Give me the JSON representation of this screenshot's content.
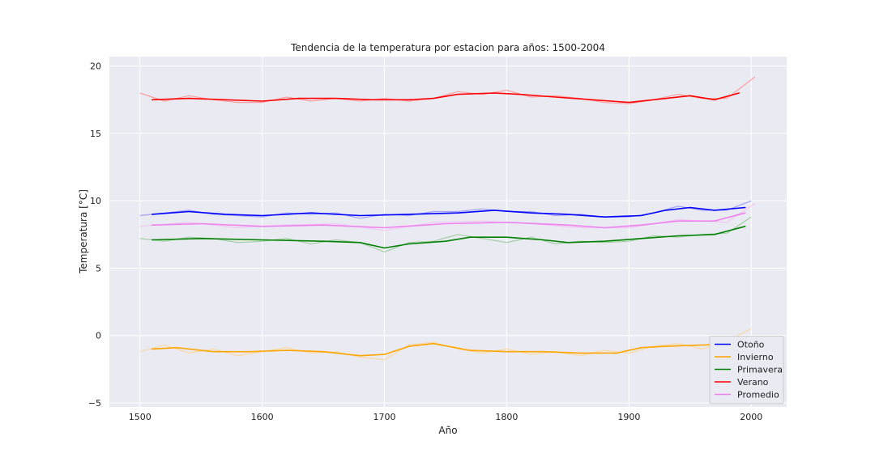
{
  "chart_data": {
    "type": "line",
    "title": "Tendencia de la temperatura por estacion para años: 1500-2004",
    "xlabel": "Año",
    "ylabel": "Temperatura [°C]",
    "xlim": [
      1475,
      2029
    ],
    "ylim": [
      -5.3,
      20.7
    ],
    "xticks": [
      1500,
      1600,
      1700,
      1800,
      1900,
      2000
    ],
    "yticks": [
      -5,
      0,
      5,
      10,
      15,
      20
    ],
    "grid": true,
    "background": "#eaeaf2",
    "legend_position": "lower-right",
    "series": [
      {
        "name": "Otoño",
        "color": "#0000ff",
        "x": [
          1510,
          1540,
          1570,
          1600,
          1640,
          1680,
          1720,
          1760,
          1790,
          1820,
          1850,
          1880,
          1910,
          1930,
          1950,
          1970,
          1995
        ],
        "values": [
          9.0,
          9.2,
          9.0,
          8.9,
          9.1,
          8.9,
          9.0,
          9.1,
          9.3,
          9.1,
          9.0,
          8.8,
          8.9,
          9.3,
          9.5,
          9.3,
          9.5
        ],
        "raw_color": "#8080ff",
        "raw_x": [
          1500,
          1520,
          1540,
          1560,
          1580,
          1600,
          1620,
          1640,
          1660,
          1680,
          1700,
          1720,
          1740,
          1760,
          1780,
          1800,
          1820,
          1840,
          1860,
          1880,
          1900,
          1920,
          1940,
          1960,
          1980,
          2000
        ],
        "raw_values": [
          8.9,
          9.1,
          9.3,
          9.0,
          8.9,
          8.8,
          9.1,
          9.0,
          9.1,
          8.7,
          9.0,
          8.9,
          9.2,
          9.2,
          9.4,
          9.2,
          9.2,
          8.9,
          9.0,
          8.8,
          8.8,
          9.1,
          9.6,
          9.3,
          9.3,
          10.0
        ]
      },
      {
        "name": "Invierno",
        "color": "#ffa500",
        "x": [
          1510,
          1530,
          1560,
          1590,
          1620,
          1650,
          1680,
          1700,
          1720,
          1740,
          1770,
          1800,
          1830,
          1860,
          1890,
          1910,
          1930,
          1960,
          1990
        ],
        "values": [
          -1.0,
          -0.9,
          -1.2,
          -1.2,
          -1.1,
          -1.2,
          -1.5,
          -1.4,
          -0.8,
          -0.6,
          -1.1,
          -1.2,
          -1.2,
          -1.3,
          -1.3,
          -0.9,
          -0.8,
          -0.7,
          -0.6
        ],
        "raw_color": "#ffd080",
        "raw_x": [
          1500,
          1520,
          1540,
          1560,
          1580,
          1600,
          1620,
          1640,
          1660,
          1680,
          1700,
          1720,
          1740,
          1760,
          1780,
          1800,
          1820,
          1840,
          1860,
          1880,
          1900,
          1920,
          1940,
          1960,
          1980,
          2000
        ],
        "raw_values": [
          -1.2,
          -0.7,
          -1.3,
          -1.0,
          -1.5,
          -1.2,
          -0.9,
          -1.3,
          -1.2,
          -1.6,
          -1.8,
          -0.7,
          -0.5,
          -1.0,
          -1.3,
          -1.0,
          -1.4,
          -1.2,
          -1.5,
          -1.1,
          -1.3,
          -0.8,
          -0.6,
          -1.0,
          -0.4,
          0.5
        ]
      },
      {
        "name": "Primavera",
        "color": "#008000",
        "x": [
          1510,
          1550,
          1600,
          1650,
          1680,
          1700,
          1720,
          1750,
          1770,
          1800,
          1830,
          1850,
          1880,
          1910,
          1940,
          1970,
          1995
        ],
        "values": [
          7.1,
          7.2,
          7.1,
          7.0,
          6.9,
          6.5,
          6.8,
          7.0,
          7.3,
          7.3,
          7.1,
          6.9,
          7.0,
          7.2,
          7.4,
          7.5,
          8.1
        ],
        "raw_color": "#80c080",
        "raw_x": [
          1500,
          1520,
          1540,
          1560,
          1580,
          1600,
          1620,
          1640,
          1660,
          1680,
          1700,
          1720,
          1740,
          1760,
          1780,
          1800,
          1820,
          1840,
          1860,
          1880,
          1900,
          1920,
          1940,
          1960,
          1980,
          2000
        ],
        "raw_values": [
          7.2,
          7.0,
          7.3,
          7.2,
          6.9,
          7.0,
          7.2,
          6.8,
          7.1,
          6.9,
          6.2,
          6.9,
          7.0,
          7.5,
          7.2,
          6.9,
          7.3,
          6.8,
          7.0,
          6.9,
          7.0,
          7.4,
          7.3,
          7.5,
          7.6,
          8.8
        ]
      },
      {
        "name": "Verano",
        "color": "#ff0000",
        "x": [
          1510,
          1540,
          1570,
          1600,
          1630,
          1660,
          1690,
          1720,
          1740,
          1760,
          1790,
          1810,
          1840,
          1870,
          1900,
          1920,
          1950,
          1970,
          1990
        ],
        "values": [
          17.5,
          17.6,
          17.5,
          17.4,
          17.6,
          17.6,
          17.5,
          17.5,
          17.6,
          17.9,
          18.0,
          17.9,
          17.7,
          17.5,
          17.3,
          17.5,
          17.8,
          17.5,
          18.0
        ],
        "raw_color": "#ff8080",
        "raw_x": [
          1500,
          1520,
          1540,
          1560,
          1580,
          1600,
          1620,
          1640,
          1660,
          1680,
          1700,
          1720,
          1740,
          1760,
          1780,
          1800,
          1820,
          1840,
          1860,
          1880,
          1900,
          1920,
          1940,
          1960,
          1980,
          2003
        ],
        "raw_values": [
          18.0,
          17.4,
          17.8,
          17.5,
          17.3,
          17.3,
          17.7,
          17.4,
          17.6,
          17.4,
          17.6,
          17.4,
          17.6,
          18.1,
          17.9,
          18.2,
          17.7,
          17.8,
          17.6,
          17.3,
          17.2,
          17.5,
          17.9,
          17.6,
          17.6,
          19.2
        ]
      },
      {
        "name": "Promedio",
        "color": "#ee82ee",
        "x": [
          1510,
          1550,
          1600,
          1650,
          1700,
          1750,
          1800,
          1850,
          1880,
          1910,
          1940,
          1970,
          1995
        ],
        "values": [
          8.2,
          8.3,
          8.1,
          8.2,
          8.0,
          8.3,
          8.4,
          8.2,
          8.0,
          8.2,
          8.5,
          8.5,
          9.1
        ],
        "raw_color": "#f5b8f5",
        "raw_x": [
          1500,
          1540,
          1580,
          1620,
          1660,
          1700,
          1740,
          1780,
          1820,
          1860,
          1900,
          1940,
          1980,
          2003
        ],
        "raw_values": [
          8.1,
          8.4,
          8.0,
          8.2,
          8.3,
          7.8,
          8.4,
          8.5,
          8.3,
          8.0,
          8.0,
          8.6,
          8.4,
          9.8
        ]
      }
    ]
  }
}
